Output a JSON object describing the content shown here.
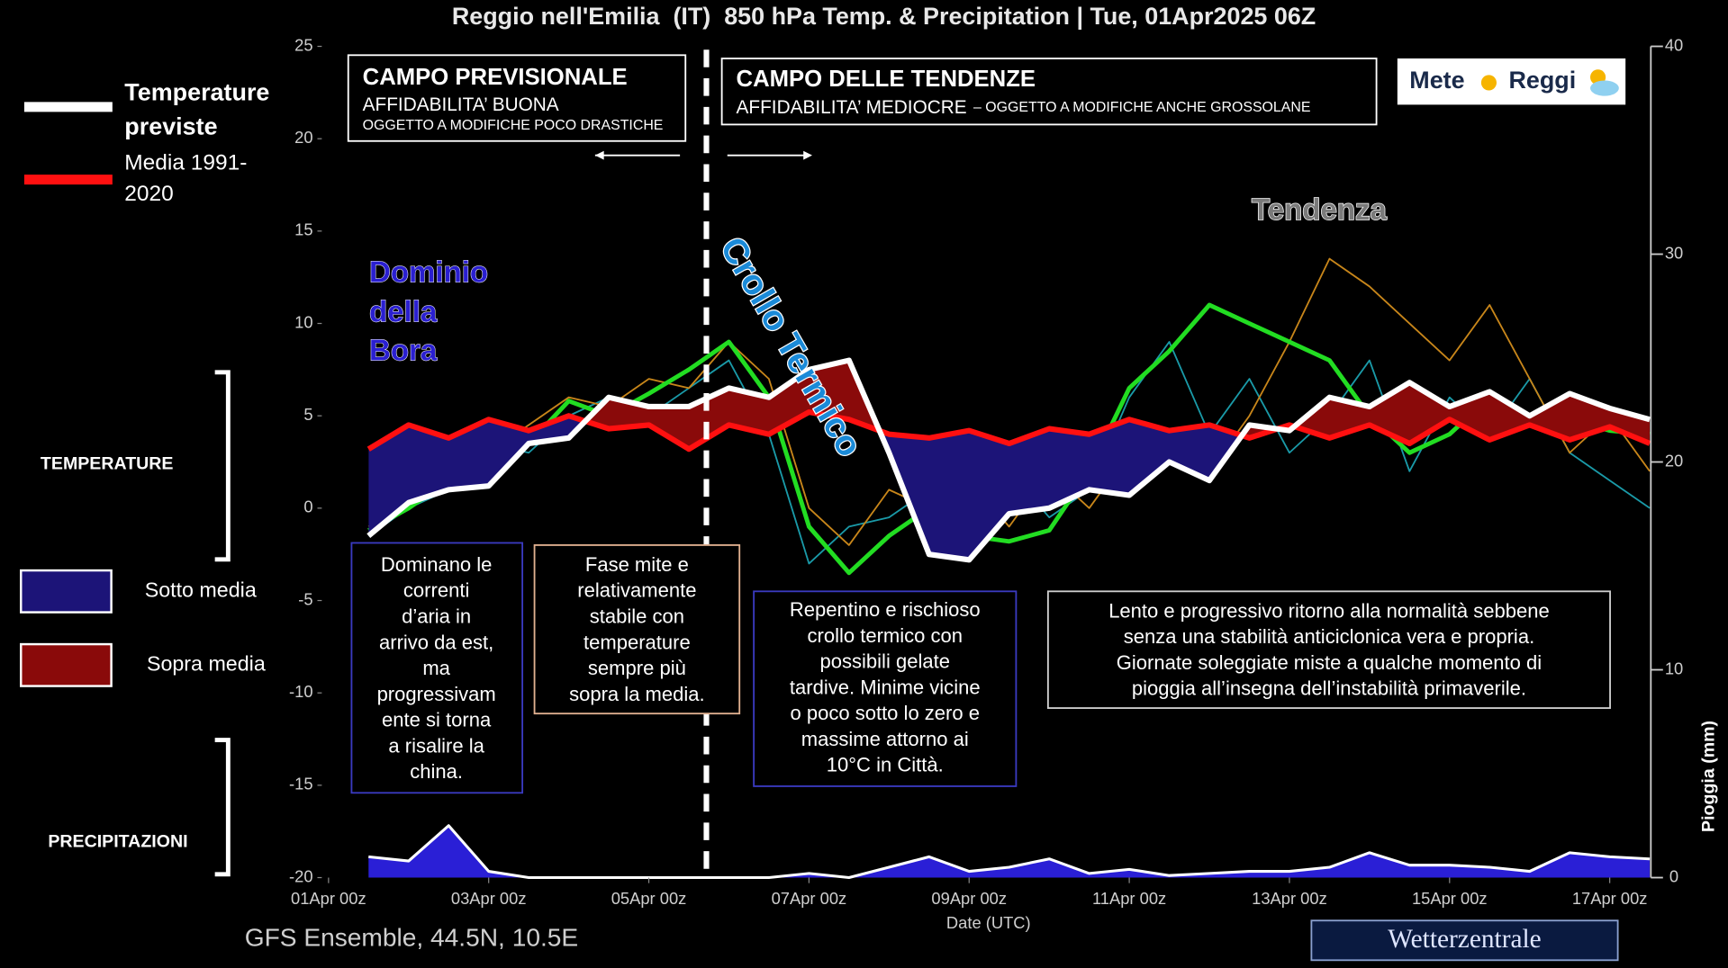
{
  "chart_data": {
    "type": "line",
    "title": "Reggio nell'Emilia  (IT)  850 hPa Temp. & Precipitation | Tue, 01Apr2025 06Z",
    "x_label": "Date (UTC)",
    "y2_label": "Pioggia (mm)",
    "footer": "GFS Ensemble, 44.5N, 10.5E",
    "source": "Wetterzentrale",
    "logo": [
      "Mete",
      "Reggi"
    ],
    "x": [
      12,
      24,
      36,
      48,
      60,
      72,
      84,
      96,
      108,
      120,
      132,
      144,
      156,
      168,
      180,
      192,
      204,
      216,
      228,
      240,
      252,
      264,
      276,
      288,
      300,
      312,
      324,
      336,
      348,
      360,
      372,
      384,
      396
    ],
    "xlim": [
      -4,
      396
    ],
    "xticks": [
      {
        "value": 0,
        "label": "01Apr 00z"
      },
      {
        "value": 48,
        "label": "03Apr 00z"
      },
      {
        "value": 96,
        "label": "05Apr 00z"
      },
      {
        "value": 144,
        "label": "07Apr 00z"
      },
      {
        "value": 192,
        "label": "09Apr 00z"
      },
      {
        "value": 240,
        "label": "11Apr 00z"
      },
      {
        "value": 288,
        "label": "13Apr 00z"
      },
      {
        "value": 336,
        "label": "15Apr 00z"
      },
      {
        "value": 384,
        "label": "17Apr 00z"
      }
    ],
    "ylim": [
      -20,
      25
    ],
    "yticks": [
      -20,
      -15,
      -10,
      -5,
      0,
      5,
      10,
      15,
      20,
      25
    ],
    "y2lim": [
      0,
      40
    ],
    "y2ticks": [
      0,
      10,
      20,
      30,
      40
    ],
    "series": [
      {
        "name": "Temperature previste",
        "color": "#ffffff",
        "values": [
          -1.5,
          0.3,
          1,
          1.2,
          3.5,
          3.8,
          6,
          5.5,
          5.5,
          6.5,
          6,
          7.5,
          8,
          3,
          -2.5,
          -2.8,
          -0.3,
          0,
          1,
          0.7,
          2.5,
          1.5,
          4.5,
          4.2,
          6,
          5.5,
          6.8,
          5.5,
          6.3,
          5,
          6.2,
          5.4,
          4.8
        ]
      },
      {
        "name": "Media 1991-2020",
        "color": "#ff1010",
        "values": [
          3.2,
          4.5,
          3.8,
          4.8,
          4.2,
          5,
          4.3,
          4.5,
          3.2,
          4.5,
          4,
          5.2,
          4.8,
          4,
          3.8,
          4.2,
          3.5,
          4.3,
          4,
          4.8,
          4.2,
          4.5,
          3.8,
          4.5,
          3.8,
          4.5,
          3.5,
          4.8,
          3.7,
          4.5,
          3.7,
          4.4,
          3.5
        ]
      },
      {
        "color": "#22dd22",
        "values": [
          -1.2,
          0,
          1.5,
          3,
          3.5,
          5.8,
          5,
          6.2,
          7.5,
          9,
          6,
          -1,
          -3.5,
          -1.5,
          0,
          -1.5,
          -1.8,
          -1.2,
          2,
          6.5,
          8.5,
          11,
          10,
          9,
          8,
          5,
          3,
          4,
          6,
          4.5,
          4.8,
          4.2,
          4
        ]
      },
      {
        "color": "#c8861a",
        "values": [
          -1,
          0.5,
          2,
          3,
          4.5,
          6,
          5.5,
          7,
          6.5,
          9,
          7,
          0,
          -2,
          1,
          0,
          1.5,
          -1,
          2,
          0,
          3,
          4,
          2,
          5,
          9,
          13.5,
          12,
          10,
          8,
          11,
          7,
          3,
          5,
          2
        ]
      },
      {
        "color": "#1a9aa8",
        "values": [
          -1.5,
          0,
          1,
          3.5,
          3,
          5,
          6,
          5,
          6.5,
          8,
          4,
          -3,
          -1,
          -0.5,
          1,
          0.5,
          2,
          -0.5,
          1,
          6,
          9,
          4,
          7,
          3,
          5,
          8,
          2,
          6,
          4,
          7,
          3,
          1.5,
          0
        ]
      },
      {
        "color": "#2a1fd6",
        "axis": "y2",
        "values": [
          1.0,
          0.8,
          2.5,
          0.3,
          0,
          0,
          0,
          0,
          0,
          0,
          0,
          0.2,
          0,
          0.5,
          1.0,
          0.3,
          0.5,
          0.9,
          0.2,
          0.4,
          0.1,
          0.2,
          0.3,
          0.3,
          0.5,
          1.2,
          0.6,
          0.6,
          0.5,
          0.3,
          1.2,
          1.0,
          0.9
        ]
      }
    ],
    "shading": [
      {
        "name": "Sotto media",
        "color": "#1c1478"
      },
      {
        "name": "Sopra media",
        "color": "#8a0a0a"
      }
    ],
    "side_labels": [
      "TEMPERATURE",
      "PRECIPITAZIONI"
    ],
    "period_left": {
      "title": "CAMPO PREVISIONALE",
      "lines": [
        "AFFIDABILITA’ BUONA",
        "OGGETTO A MODIFICHE POCO DRASTICHE"
      ]
    },
    "period_right": {
      "title": "CAMPO DELLE TENDENZE",
      "lines": [
        "AFFIDABILITA’ MEDIOCRE",
        "– OGGETTO A MODIFICHE ANCHE GROSSOLANE"
      ]
    },
    "labels": {
      "dominio": [
        "Dominio",
        "della",
        "Bora"
      ],
      "crollo": "Crollo Termico",
      "tendenza": "Tendenza"
    },
    "notes": [
      [
        "Dominano le",
        "correnti",
        "d’aria in",
        "arrivo da est,",
        "ma",
        "progressivam",
        "ente si torna",
        "a risalire la",
        "china."
      ],
      [
        "Fase mite e",
        "relativamente",
        "stabile con",
        "temperature",
        "sempre più",
        "sopra la media."
      ],
      [
        "Repentino e rischioso",
        "crollo termico con",
        "possibili gelate",
        "tardive. Minime vicine",
        "o poco sotto lo zero e",
        "massime attorno ai",
        "10°C in Città."
      ],
      [
        "Lento e progressivo ritorno alla normalità sebbene",
        "senza una stabilità anticiclonica vera e propria.",
        "Giornate soleggiate miste a qualche momento di",
        "pioggia all’insegna dell’instabilità primaverile."
      ]
    ]
  }
}
